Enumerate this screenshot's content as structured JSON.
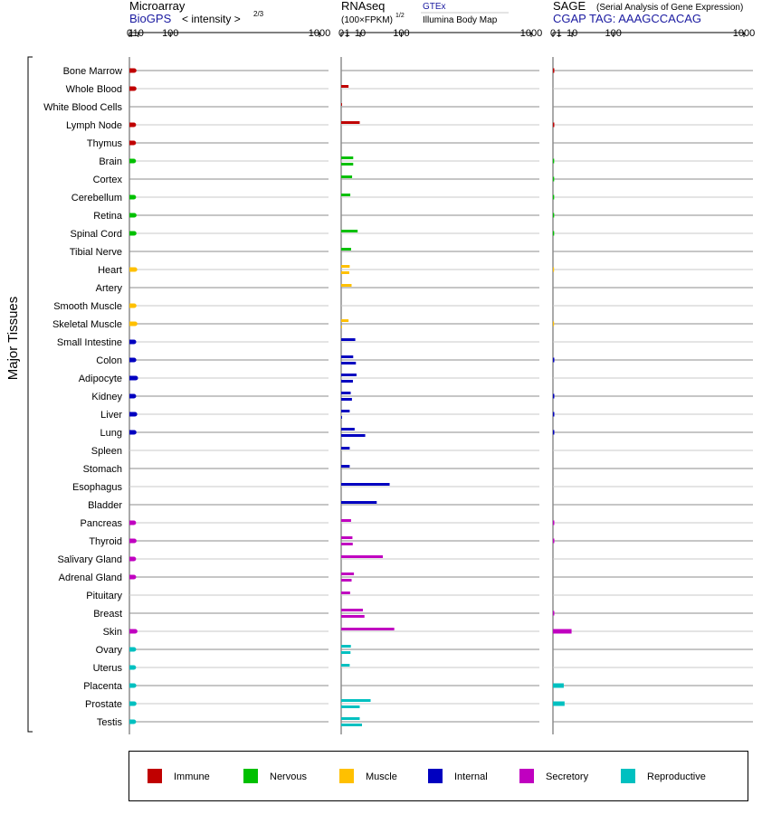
{
  "chart_data": {
    "type": "bar",
    "y_axis_title": "Major Tissues",
    "tissues": [
      {
        "name": "Bone Marrow",
        "group": "immune"
      },
      {
        "name": "Whole Blood",
        "group": "immune"
      },
      {
        "name": "White Blood Cells",
        "group": "immune"
      },
      {
        "name": "Lymph Node",
        "group": "immune"
      },
      {
        "name": "Thymus",
        "group": "immune"
      },
      {
        "name": "Brain",
        "group": "nervous"
      },
      {
        "name": "Cortex",
        "group": "nervous"
      },
      {
        "name": "Cerebellum",
        "group": "nervous"
      },
      {
        "name": "Retina",
        "group": "nervous"
      },
      {
        "name": "Spinal Cord",
        "group": "nervous"
      },
      {
        "name": "Tibial Nerve",
        "group": "nervous"
      },
      {
        "name": "Heart",
        "group": "muscle"
      },
      {
        "name": "Artery",
        "group": "muscle"
      },
      {
        "name": "Smooth Muscle",
        "group": "muscle"
      },
      {
        "name": "Skeletal Muscle",
        "group": "muscle"
      },
      {
        "name": "Small Intestine",
        "group": "internal"
      },
      {
        "name": "Colon",
        "group": "internal"
      },
      {
        "name": "Adipocyte",
        "group": "internal"
      },
      {
        "name": "Kidney",
        "group": "internal"
      },
      {
        "name": "Liver",
        "group": "internal"
      },
      {
        "name": "Lung",
        "group": "internal"
      },
      {
        "name": "Spleen",
        "group": "internal"
      },
      {
        "name": "Stomach",
        "group": "internal"
      },
      {
        "name": "Esophagus",
        "group": "internal"
      },
      {
        "name": "Bladder",
        "group": "internal"
      },
      {
        "name": "Pancreas",
        "group": "secretory"
      },
      {
        "name": "Thyroid",
        "group": "secretory"
      },
      {
        "name": "Salivary Gland",
        "group": "secretory"
      },
      {
        "name": "Adrenal Gland",
        "group": "secretory"
      },
      {
        "name": "Pituitary",
        "group": "secretory"
      },
      {
        "name": "Breast",
        "group": "secretory"
      },
      {
        "name": "Skin",
        "group": "secretory"
      },
      {
        "name": "Ovary",
        "group": "reproductive"
      },
      {
        "name": "Uterus",
        "group": "reproductive"
      },
      {
        "name": "Placenta",
        "group": "reproductive"
      },
      {
        "name": "Prostate",
        "group": "reproductive"
      },
      {
        "name": "Testis",
        "group": "reproductive"
      }
    ],
    "legend": [
      {
        "key": "immune",
        "label": "Immune",
        "color": "#C00000"
      },
      {
        "key": "nervous",
        "label": "Nervous",
        "color": "#00C000"
      },
      {
        "key": "muscle",
        "label": "Muscle",
        "color": "#FFC000"
      },
      {
        "key": "internal",
        "label": "Internal",
        "color": "#0000C0"
      },
      {
        "key": "secretory",
        "label": "Secretory",
        "color": "#C000C0"
      },
      {
        "key": "reproductive",
        "label": "Reproductive",
        "color": "#00C0C0"
      }
    ],
    "panels": [
      {
        "id": "microarray",
        "title": "Microarray",
        "subtitle": "BioGPS",
        "axis_label": "< intensity >",
        "axis_exponent": "2/3",
        "scale": "power-2/3",
        "ticks": [
          "0",
          "1",
          "10",
          "100",
          "1000"
        ],
        "xlim": [
          0,
          1000
        ],
        "values": [
          [
            4.0
          ],
          [
            4.0
          ],
          [],
          [
            3.5
          ],
          [
            3.4
          ],
          [
            3.4
          ],
          [],
          [
            3.5
          ],
          [
            4.1
          ],
          [
            4.0
          ],
          [],
          [
            5.0
          ],
          [],
          [
            4.0
          ],
          [
            5.2
          ],
          [
            3.7
          ],
          [
            3.8
          ],
          [
            6.1
          ],
          [
            3.6
          ],
          [
            5.0
          ],
          [
            4.0
          ],
          [],
          [],
          [],
          [],
          [
            3.5
          ],
          [
            4.1
          ],
          [
            3.5
          ],
          [
            3.6
          ],
          [],
          [],
          [
            5.3
          ],
          [
            3.6
          ],
          [
            3.5
          ],
          [
            3.8
          ],
          [
            4.0
          ],
          [
            3.5
          ]
        ]
      },
      {
        "id": "rnaseq",
        "title": "RNAseq",
        "subtitle": "(100×FPKM)",
        "axis_exponent": "1/2",
        "sources": [
          "GTEx",
          "Illumina Body Map"
        ],
        "scale": "sqrt",
        "ticks": [
          "0",
          "1",
          "10",
          "100",
          "1000"
        ],
        "xlim": [
          0,
          1000
        ],
        "values": [
          [],
          [
            1.5
          ],
          [
            0.02
          ],
          [
            9.5
          ],
          [],
          [
            4.0,
            4.0
          ],
          [
            3.3
          ],
          [
            2.3
          ],
          [],
          [
            7.5
          ],
          [
            2.7
          ],
          [
            2.0,
            1.8
          ],
          [
            3.0
          ],
          [],
          [
            1.5,
            0.02
          ],
          [
            5.5
          ],
          [
            4.0,
            6.0
          ],
          [
            6.5,
            3.8
          ],
          [
            2.5,
            3.2
          ],
          [
            2.0,
            0.02
          ],
          [
            5.0,
            16.0
          ],
          [
            2.0
          ],
          [
            2.0
          ],
          [
            65
          ],
          [
            35
          ],
          [
            2.7
          ],
          [
            3.5,
            3.7
          ],
          [
            48
          ],
          [
            4.5,
            3.0
          ],
          [
            2.2
          ],
          [
            13,
            15
          ],
          [
            78
          ],
          [
            2.6,
            2.4
          ],
          [
            2.0
          ],
          [],
          [
            24,
            9.5
          ],
          [
            9.5,
            12
          ]
        ]
      },
      {
        "id": "sage",
        "title": "SAGE",
        "title_note": "(Serial Analysis of Gene Expression)",
        "subtitle": "CGAP TAG: AAAGCCACAG",
        "scale": "sqrt",
        "ticks": [
          "0",
          "1",
          "10",
          "100",
          "1000"
        ],
        "xlim": [
          0,
          1000
        ],
        "values": [
          [
            0.05
          ],
          [],
          [],
          [
            0.05
          ],
          [],
          [
            0.04
          ],
          [
            0.04
          ],
          [
            0.04
          ],
          [
            0.04
          ],
          [
            0.04
          ],
          [],
          [
            0.03
          ],
          [],
          [],
          [
            0.03
          ],
          [],
          [
            0.05
          ],
          [],
          [
            0.05
          ],
          [
            0.05
          ],
          [
            0.05
          ],
          [],
          [],
          [],
          [],
          [
            0.05
          ],
          [
            0.05
          ],
          [],
          [],
          [],
          [
            0.05
          ],
          [
            9.5
          ],
          [],
          [],
          [
            3.2
          ],
          [
            3.7
          ],
          []
        ]
      }
    ]
  }
}
